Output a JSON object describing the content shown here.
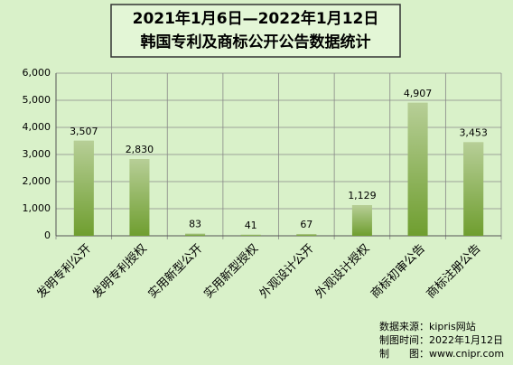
{
  "chart_data": {
    "type": "bar",
    "title": [
      "2021年1月6日—2022年1月12日",
      "韩国专利及商标公开公告数据统计"
    ],
    "categories": [
      "发明专利公开",
      "发明专利授权",
      "实用新型公开",
      "实用新型授权",
      "外观设计公开",
      "外观设计授权",
      "商标初审公告",
      "商标注册公告"
    ],
    "values": [
      3507,
      2830,
      83,
      41,
      67,
      1129,
      4907,
      3453
    ],
    "value_labels": [
      "3,507",
      "2,830",
      "83",
      "41",
      "67",
      "1,129",
      "4,907",
      "3,453"
    ],
    "color": "#6f9e2f",
    "ylim": [
      0,
      6000
    ],
    "yticks": [
      0,
      {
        "value": 1000,
        "label": "1,000"
      },
      {
        "value": 2000,
        "label": "2,000"
      },
      {
        "value": 3000,
        "label": "3,000"
      },
      {
        "value": 4000,
        "label": "4,000"
      },
      {
        "value": 5000,
        "label": "5,000"
      },
      {
        "value": 6000,
        "label": "6,000"
      }
    ],
    "grid": true,
    "notes": [
      "数据来源：kipris网站",
      "制图时间：2022年1月12日",
      "制　　图：www.cnipr.com"
    ]
  }
}
